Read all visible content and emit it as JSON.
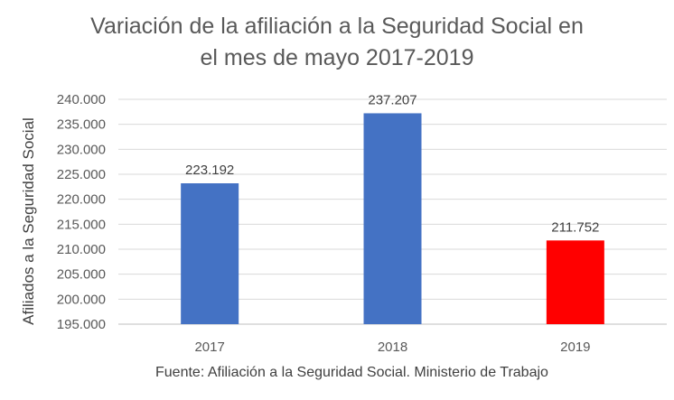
{
  "chart_data": {
    "type": "bar",
    "title_lines": [
      "Variación de la afiliación a la Seguridad Social en",
      "el mes de mayo 2017-2019"
    ],
    "xlabel": "",
    "ylabel": "Afiliados a la Seguridad Social",
    "categories": [
      "2017",
      "2018",
      "2019"
    ],
    "values": [
      223192,
      237207,
      211752
    ],
    "value_labels": [
      "223.192",
      "237.207",
      "211.752"
    ],
    "bar_colors": [
      "#4472C4",
      "#4472C4",
      "#FF0000"
    ],
    "ylim": [
      195000,
      240000
    ],
    "yticks": [
      195000,
      200000,
      205000,
      210000,
      215000,
      220000,
      225000,
      230000,
      235000,
      240000
    ],
    "ytick_labels": [
      "195.000",
      "200.000",
      "205.000",
      "210.000",
      "215.000",
      "220.000",
      "225.000",
      "230.000",
      "235.000",
      "240.000"
    ],
    "grid": true,
    "legend": "none",
    "source": "Fuente: Afiliación a la Seguridad Social. Ministerio de Trabajo"
  }
}
